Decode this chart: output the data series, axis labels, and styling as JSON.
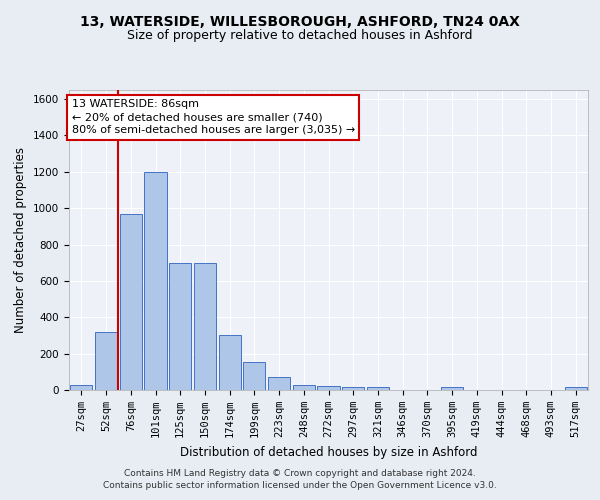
{
  "title_line1": "13, WATERSIDE, WILLESBOROUGH, ASHFORD, TN24 0AX",
  "title_line2": "Size of property relative to detached houses in Ashford",
  "xlabel": "Distribution of detached houses by size in Ashford",
  "ylabel": "Number of detached properties",
  "footer_line1": "Contains HM Land Registry data © Crown copyright and database right 2024.",
  "footer_line2": "Contains public sector information licensed under the Open Government Licence v3.0.",
  "bin_labels": [
    "27sqm",
    "52sqm",
    "76sqm",
    "101sqm",
    "125sqm",
    "150sqm",
    "174sqm",
    "199sqm",
    "223sqm",
    "248sqm",
    "272sqm",
    "297sqm",
    "321sqm",
    "346sqm",
    "370sqm",
    "395sqm",
    "419sqm",
    "444sqm",
    "468sqm",
    "493sqm",
    "517sqm"
  ],
  "bar_values": [
    30,
    320,
    970,
    1200,
    700,
    700,
    305,
    155,
    70,
    30,
    20,
    15,
    15,
    0,
    0,
    15,
    0,
    0,
    0,
    0,
    15
  ],
  "bar_color": "#aec6e8",
  "bar_edge_color": "#4472c4",
  "annotation_line1": "13 WATERSIDE: 86sqm",
  "annotation_line2": "← 20% of detached houses are smaller (740)",
  "annotation_line3": "80% of semi-detached houses are larger (3,035) →",
  "annotation_box_color": "#ffffff",
  "annotation_box_edge_color": "#cc0000",
  "vline_color": "#cc0000",
  "ylim": [
    0,
    1650
  ],
  "yticks": [
    0,
    200,
    400,
    600,
    800,
    1000,
    1200,
    1400,
    1600
  ],
  "bg_color": "#e8edf4",
  "plot_bg_color": "#eef2f8",
  "title_fontsize": 10,
  "subtitle_fontsize": 9,
  "axis_label_fontsize": 8.5,
  "tick_fontsize": 7.5,
  "footer_fontsize": 6.5,
  "annotation_fontsize": 8
}
